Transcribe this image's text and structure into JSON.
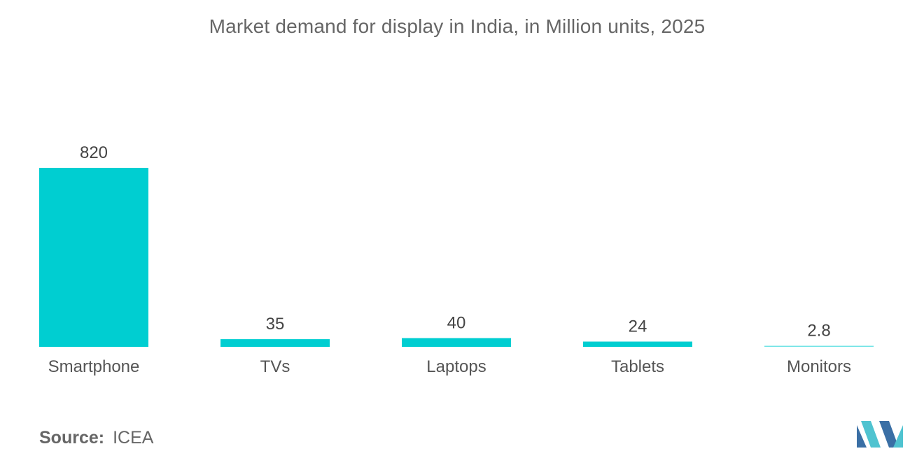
{
  "chart_data": {
    "type": "bar",
    "title": "Market demand for display in India, in Million units, 2025",
    "categories": [
      "Smartphone",
      "TVs",
      "Laptops",
      "Tablets",
      "Monitors"
    ],
    "values": [
      820,
      35,
      40,
      24,
      2.8
    ],
    "data_labels": [
      "820",
      "35",
      "40",
      "24",
      "2.8"
    ],
    "xlabel": "",
    "ylabel": "",
    "ylim": [
      0,
      820
    ],
    "grid": false,
    "legend": "none",
    "bar_color": "#00CED1"
  },
  "source": {
    "label": "Source:",
    "value": "ICEA"
  },
  "colors": {
    "bar": "#00CED1",
    "text": "#555555",
    "logo_dark": "#3a6fa5",
    "logo_light": "#4fc3d0"
  }
}
